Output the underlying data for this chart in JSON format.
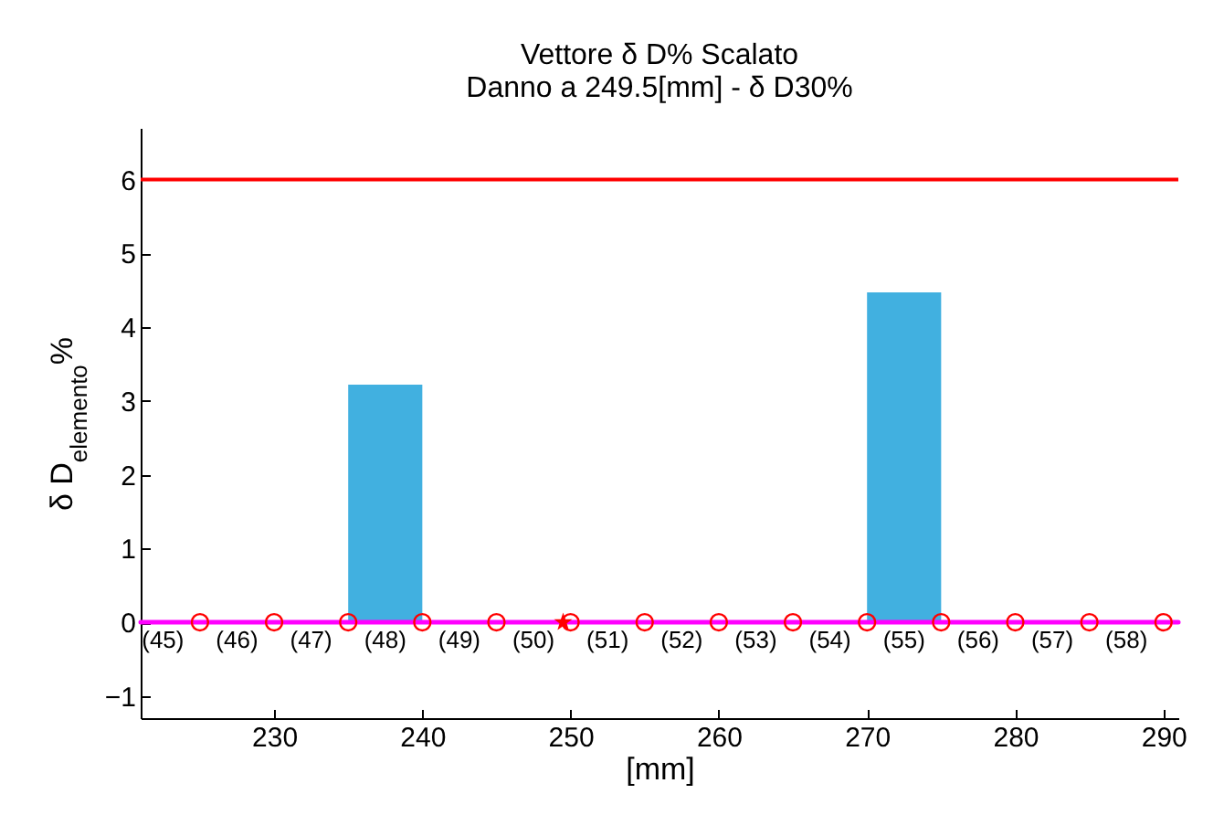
{
  "chart_data": {
    "type": "histogram",
    "title": "Vettore δ D% Scalato",
    "subtitle": "Danno a 249.5[mm] - δ D30%",
    "xlabel": "[mm]",
    "ylabel": "δ D$_{elemento}$%",
    "bins": [
      235,
      240,
      245,
      250,
      255,
      260,
      265,
      270,
      275
    ],
    "values": [
      3.22,
      0,
      0,
      0,
      0,
      0,
      0,
      4.47
    ],
    "color": "#41b0e0",
    "series": [
      {
        "type": "line",
        "x": [
          221,
          291
        ],
        "values": [
          0,
          0
        ],
        "color": "#ff00ff",
        "marker": "none"
      },
      {
        "type": "scatter",
        "x": [
          225,
          230,
          235,
          240,
          245,
          250,
          255,
          260,
          265,
          270,
          275,
          280,
          285,
          290
        ],
        "values": [
          0,
          0,
          0,
          0,
          0,
          0,
          0,
          0,
          0,
          0,
          0,
          0,
          0,
          0
        ],
        "color": "#ff0000",
        "marker": "circle"
      },
      {
        "type": "scatter",
        "x": [
          249.5
        ],
        "values": [
          0
        ],
        "color": "#ff0000",
        "marker": "star"
      }
    ],
    "ref_lines": [
      {
        "axis": "y",
        "value": 6,
        "color": "#ff0000"
      }
    ],
    "annotations": [
      "(45)",
      "(46)",
      "(47)",
      "(48)",
      "(49)",
      "(50)",
      "(51)",
      "(52)",
      "(53)",
      "(54)",
      "(55)",
      "(56)",
      "(57)",
      "(58)"
    ],
    "xlim": [
      221,
      291
    ],
    "xticks": [
      230,
      240,
      250,
      260,
      270,
      280,
      290
    ],
    "ylim": [
      -1.3,
      6.7
    ],
    "yticks": [
      -1,
      0,
      1,
      2,
      3,
      4,
      5,
      6
    ],
    "grid": false
  }
}
